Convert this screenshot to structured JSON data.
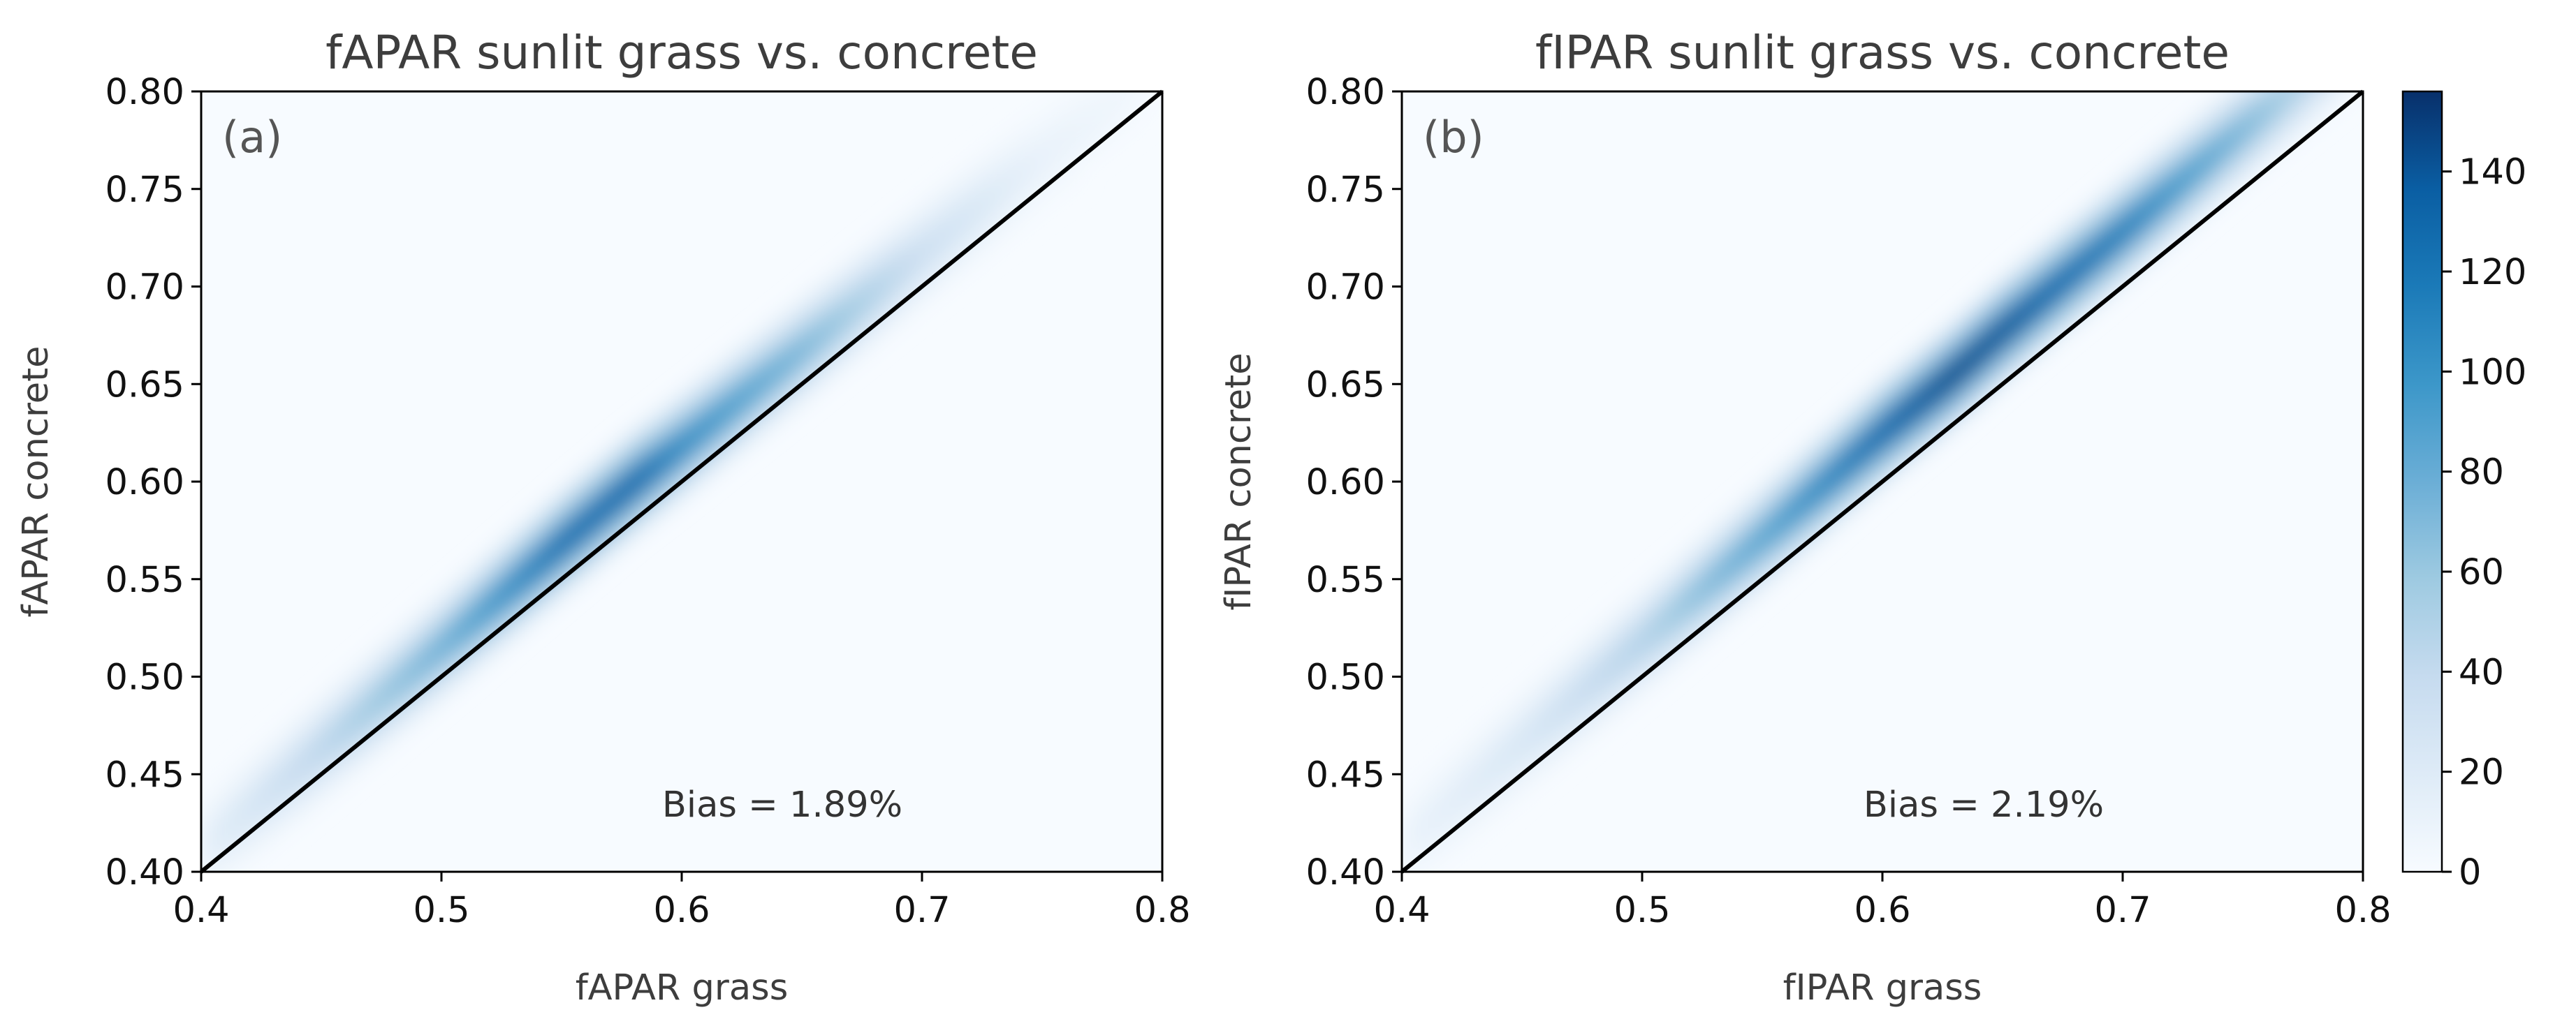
{
  "colormap": [
    "#f7fbff",
    "#deebf7",
    "#c6dbef",
    "#9ecae1",
    "#6baed6",
    "#3c97c9",
    "#1b7ab8",
    "#0a5ea3",
    "#08306b"
  ],
  "colorbar": {
    "ticks": [
      0,
      20,
      40,
      60,
      80,
      100,
      120,
      140
    ],
    "tick_labels": [
      "0",
      "20",
      "40",
      "60",
      "80",
      "100",
      "120",
      "140"
    ],
    "max": 156
  },
  "chart_data": [
    {
      "type": "heatmap",
      "title": "fAPAR sunlit grass vs. concrete",
      "panel_label": "(a)",
      "xlabel": "fAPAR grass",
      "ylabel": "fAPAR concrete",
      "xlim": [
        0.4,
        0.8
      ],
      "ylim": [
        0.4,
        0.8
      ],
      "xticks": [
        0.4,
        0.5,
        0.6,
        0.7,
        0.8
      ],
      "xtick_labels": [
        "0.4",
        "0.5",
        "0.6",
        "0.7",
        "0.8"
      ],
      "yticks": [
        0.4,
        0.45,
        0.5,
        0.55,
        0.6,
        0.65,
        0.7,
        0.75,
        0.8
      ],
      "ytick_labels": [
        "0.40",
        "0.45",
        "0.50",
        "0.55",
        "0.60",
        "0.65",
        "0.70",
        "0.75",
        "0.80"
      ],
      "reference_line": "1:1",
      "annotation": "Bias = 1.89%",
      "density_ridge": {
        "x": [
          0.4,
          0.45,
          0.5,
          0.55,
          0.58,
          0.6,
          0.65,
          0.7,
          0.75,
          0.8
        ],
        "y": [
          0.411,
          0.463,
          0.515,
          0.568,
          0.599,
          0.618,
          0.667,
          0.717,
          0.766,
          0.811
        ],
        "peak_count": [
          15,
          45,
          80,
          130,
          135,
          110,
          75,
          35,
          12,
          3
        ]
      }
    },
    {
      "type": "heatmap",
      "title": "fIPAR sunlit grass vs. concrete",
      "panel_label": "(b)",
      "xlabel": "fIPAR grass",
      "ylabel": "fIPAR concrete",
      "xlim": [
        0.4,
        0.8
      ],
      "ylim": [
        0.4,
        0.8
      ],
      "xticks": [
        0.4,
        0.5,
        0.6,
        0.7,
        0.8
      ],
      "xtick_labels": [
        "0.4",
        "0.5",
        "0.6",
        "0.7",
        "0.8"
      ],
      "yticks": [
        0.4,
        0.45,
        0.5,
        0.55,
        0.6,
        0.65,
        0.7,
        0.75,
        0.8
      ],
      "ytick_labels": [
        "0.40",
        "0.45",
        "0.50",
        "0.55",
        "0.60",
        "0.65",
        "0.70",
        "0.75",
        "0.80"
      ],
      "reference_line": "1:1",
      "annotation": "Bias = 2.19%",
      "density_ridge": {
        "x": [
          0.4,
          0.45,
          0.5,
          0.55,
          0.6,
          0.63,
          0.65,
          0.7,
          0.75,
          0.8
        ],
        "y": [
          0.413,
          0.466,
          0.518,
          0.571,
          0.625,
          0.655,
          0.677,
          0.728,
          0.78,
          0.83
        ],
        "peak_count": [
          10,
          25,
          50,
          90,
          135,
          150,
          145,
          120,
          75,
          25
        ]
      }
    }
  ]
}
